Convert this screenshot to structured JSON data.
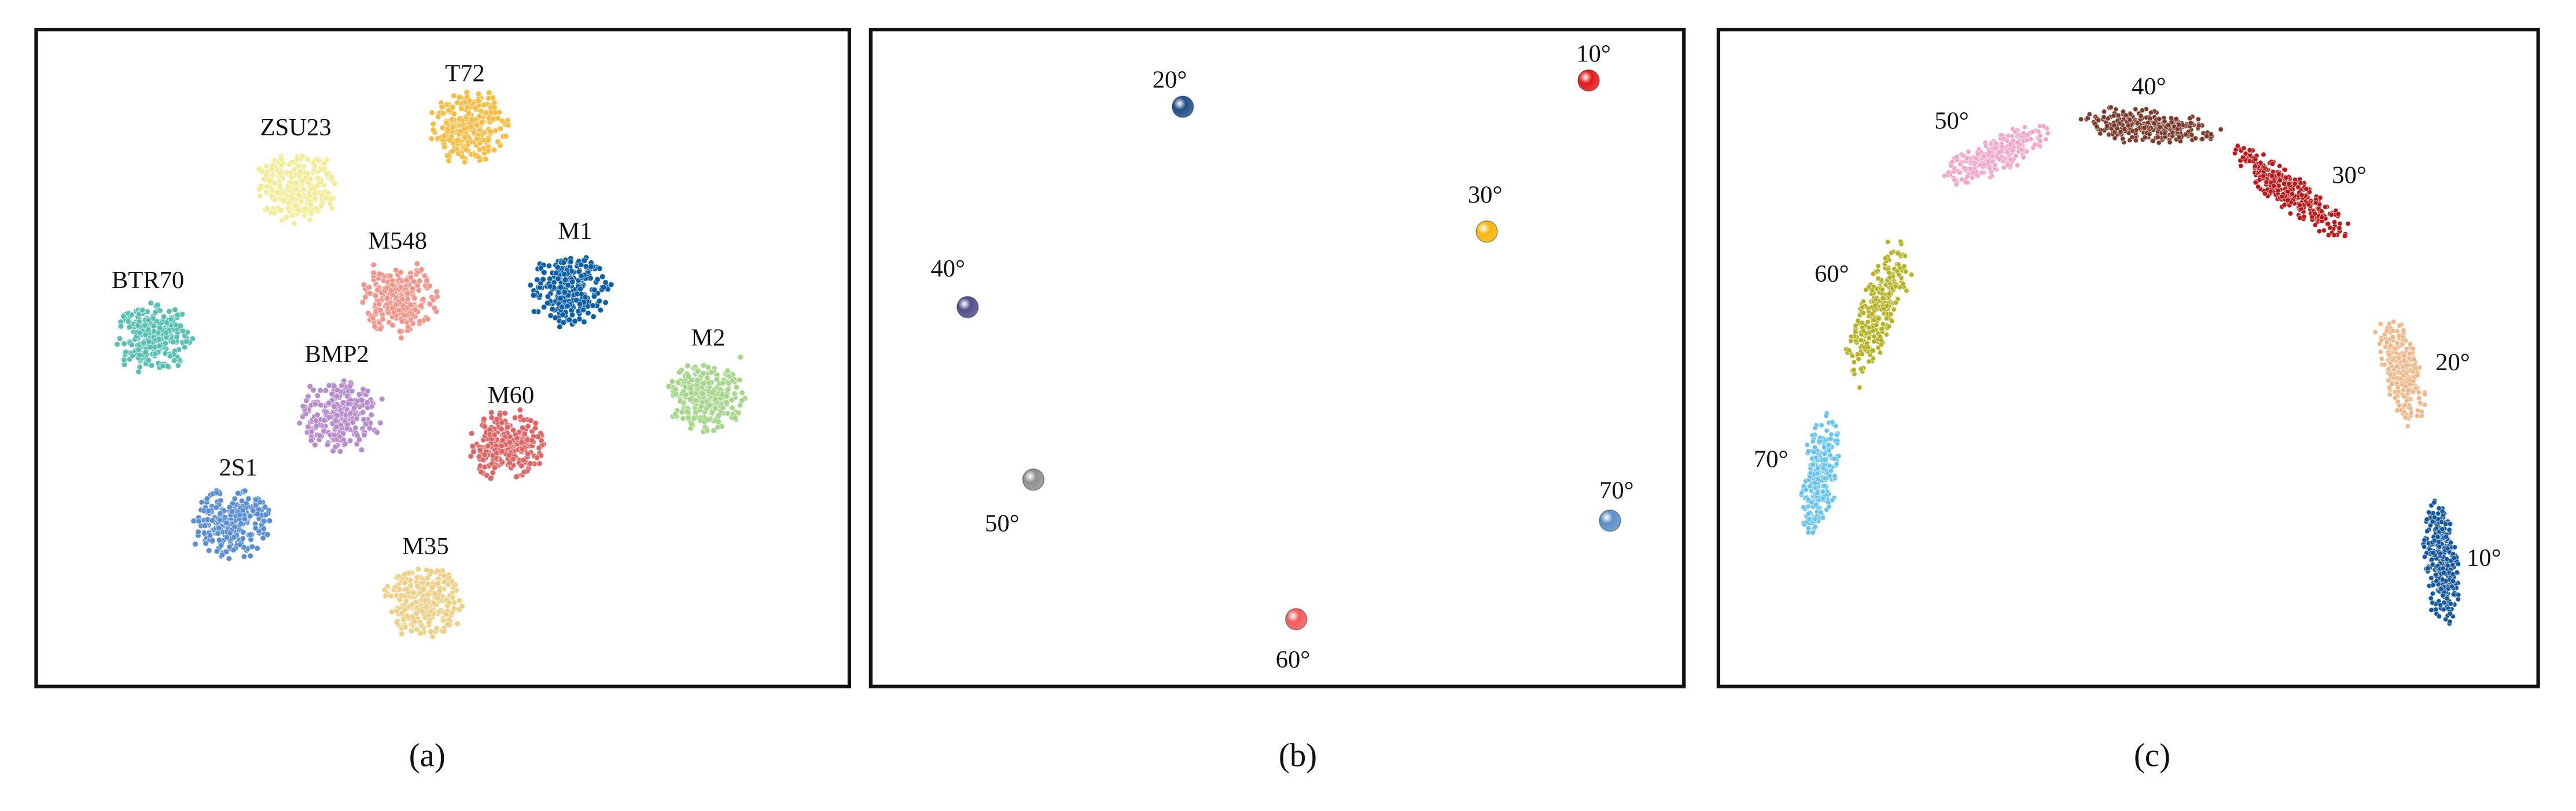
{
  "panels": [
    {
      "caption": "(a)",
      "clusters": [
        {
          "label": "T72",
          "color": "#f7bd45"
        },
        {
          "label": "ZSU23",
          "color": "#f2ec98"
        },
        {
          "label": "M548",
          "color": "#f0958a"
        },
        {
          "label": "M1",
          "color": "#0d5fa3"
        },
        {
          "label": "BTR70",
          "color": "#58bfb2"
        },
        {
          "label": "M2",
          "color": "#a6d68b"
        },
        {
          "label": "BMP2",
          "color": "#b68dca"
        },
        {
          "label": "M60",
          "color": "#dd6566"
        },
        {
          "label": "2S1",
          "color": "#5a8ed0"
        },
        {
          "label": "M35",
          "color": "#eed087"
        }
      ]
    },
    {
      "caption": "(b)",
      "clusters": [
        {
          "label": "10°",
          "color": "#e31a1c"
        },
        {
          "label": "20°",
          "color": "#1f4e86"
        },
        {
          "label": "30°",
          "color": "#f5b50a"
        },
        {
          "label": "40°",
          "color": "#4f4f8a"
        },
        {
          "label": "50°",
          "color": "#8e8e8e"
        },
        {
          "label": "60°",
          "color": "#f05a5a"
        },
        {
          "label": "70°",
          "color": "#5b8fc9"
        }
      ]
    },
    {
      "caption": "(c)",
      "clusters": [
        {
          "label": "10°",
          "color": "#15579a"
        },
        {
          "label": "20°",
          "color": "#efb88a"
        },
        {
          "label": "30°",
          "color": "#b5191b"
        },
        {
          "label": "40°",
          "color": "#7a3b2c"
        },
        {
          "label": "50°",
          "color": "#f2a6c8"
        },
        {
          "label": "60°",
          "color": "#b4b224"
        },
        {
          "label": "70°",
          "color": "#67c3ee"
        }
      ]
    }
  ]
}
